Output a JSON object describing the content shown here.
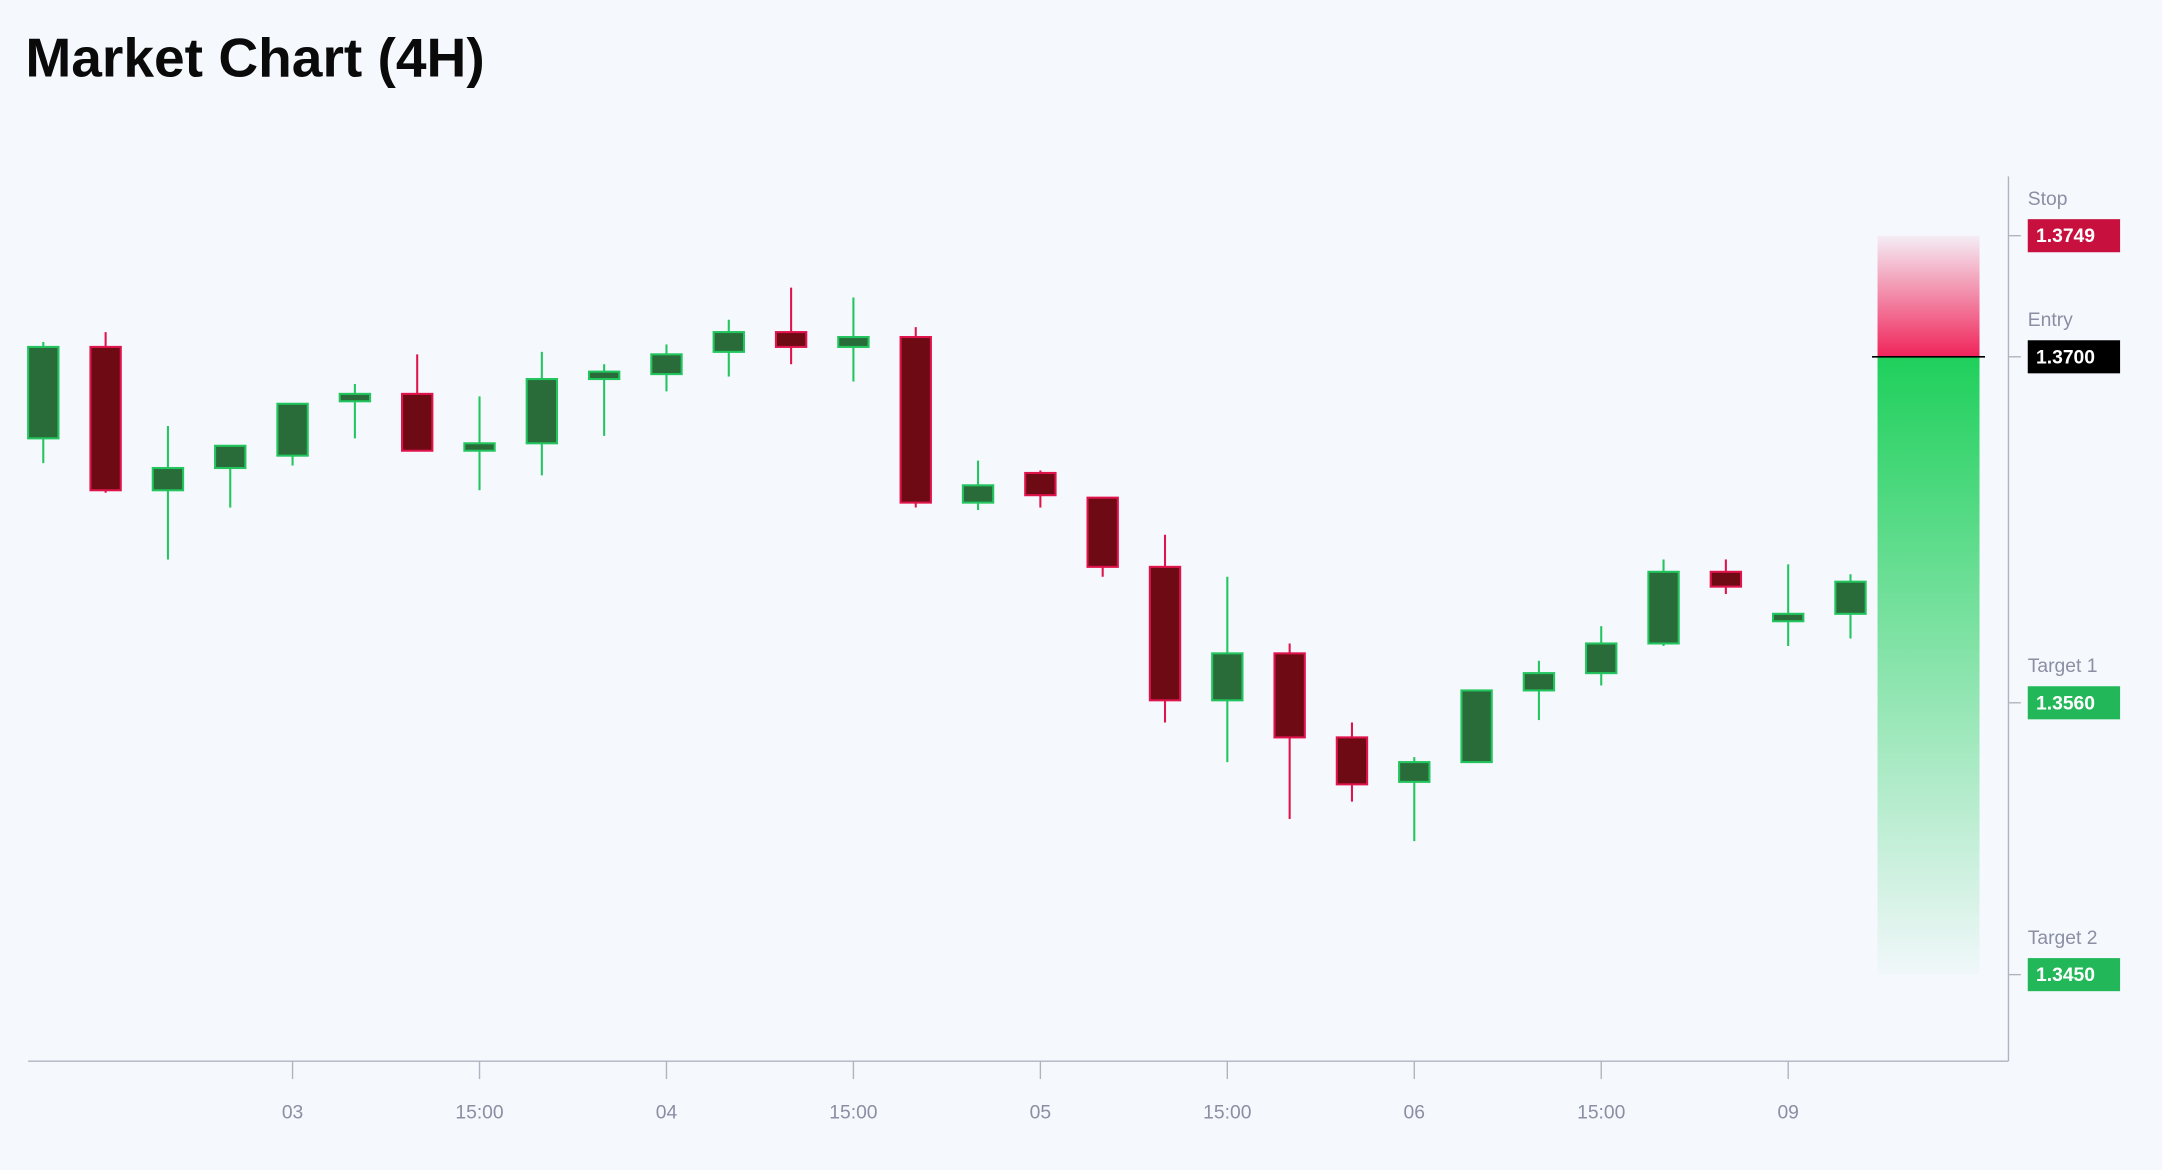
{
  "chart_data": {
    "type": "candlestick",
    "title": "Market Chart (4H)",
    "categories": [
      null,
      null,
      null,
      null,
      "03",
      null,
      null,
      "15:00",
      null,
      null,
      "04",
      null,
      null,
      "15:00",
      null,
      null,
      "05",
      null,
      null,
      "15:00",
      null,
      null,
      "06",
      null,
      null,
      "15:00",
      null,
      null,
      "09",
      null
    ],
    "open": [
      1.3667,
      1.3704,
      1.3646,
      1.3655,
      1.366,
      1.3682,
      1.3685,
      1.3662,
      1.3665,
      1.3691,
      1.3693,
      1.3702,
      1.371,
      1.3704,
      1.3708,
      1.3641,
      1.3653,
      1.3643,
      1.3615,
      1.3561,
      1.358,
      1.3546,
      1.3528,
      1.3536,
      1.3565,
      1.3572,
      1.3584,
      1.3613,
      1.3593,
      1.3596
    ],
    "high": [
      1.3706,
      1.371,
      1.3672,
      1.3664,
      1.3681,
      1.3689,
      1.3701,
      1.3684,
      1.3702,
      1.3697,
      1.3705,
      1.3715,
      1.3728,
      1.3724,
      1.3712,
      1.3658,
      1.3654,
      1.3643,
      1.3628,
      1.3611,
      1.3584,
      1.3552,
      1.3538,
      1.3565,
      1.3577,
      1.3591,
      1.3618,
      1.3618,
      1.3616,
      1.3612
    ],
    "low": [
      1.3657,
      1.3645,
      1.3618,
      1.3639,
      1.3656,
      1.3667,
      1.3662,
      1.3646,
      1.3652,
      1.3668,
      1.3686,
      1.3692,
      1.3697,
      1.369,
      1.3639,
      1.3638,
      1.3639,
      1.3611,
      1.3552,
      1.3536,
      1.3513,
      1.352,
      1.3504,
      1.3536,
      1.3553,
      1.3567,
      1.3583,
      1.3604,
      1.3583,
      1.3586
    ],
    "close": [
      1.3704,
      1.3646,
      1.3655,
      1.3664,
      1.3681,
      1.3685,
      1.3662,
      1.3665,
      1.3691,
      1.3694,
      1.3701,
      1.371,
      1.3704,
      1.3708,
      1.3641,
      1.3648,
      1.3644,
      1.3615,
      1.3561,
      1.358,
      1.3546,
      1.3527,
      1.3536,
      1.3565,
      1.3572,
      1.3584,
      1.3613,
      1.3607,
      1.3596,
      1.3609
    ],
    "up_color": "#22c55e",
    "up_fill": "#2a6b3a",
    "down_color": "#e0144c",
    "down_fill": "#6e0a14",
    "ylim": [
      1.3415,
      1.3773
    ],
    "levels": [
      {
        "name": "Stop",
        "value": 1.3749,
        "color": "#c8103f"
      },
      {
        "name": "Entry",
        "value": 1.37,
        "label": "1.3700",
        "color": "#000000"
      },
      {
        "name": "Target 1",
        "value": 1.356,
        "label": "1.3560",
        "color": "#22b859"
      },
      {
        "name": "Target 2",
        "value": 1.345,
        "label": "1.3450",
        "color": "#22b859"
      }
    ]
  }
}
